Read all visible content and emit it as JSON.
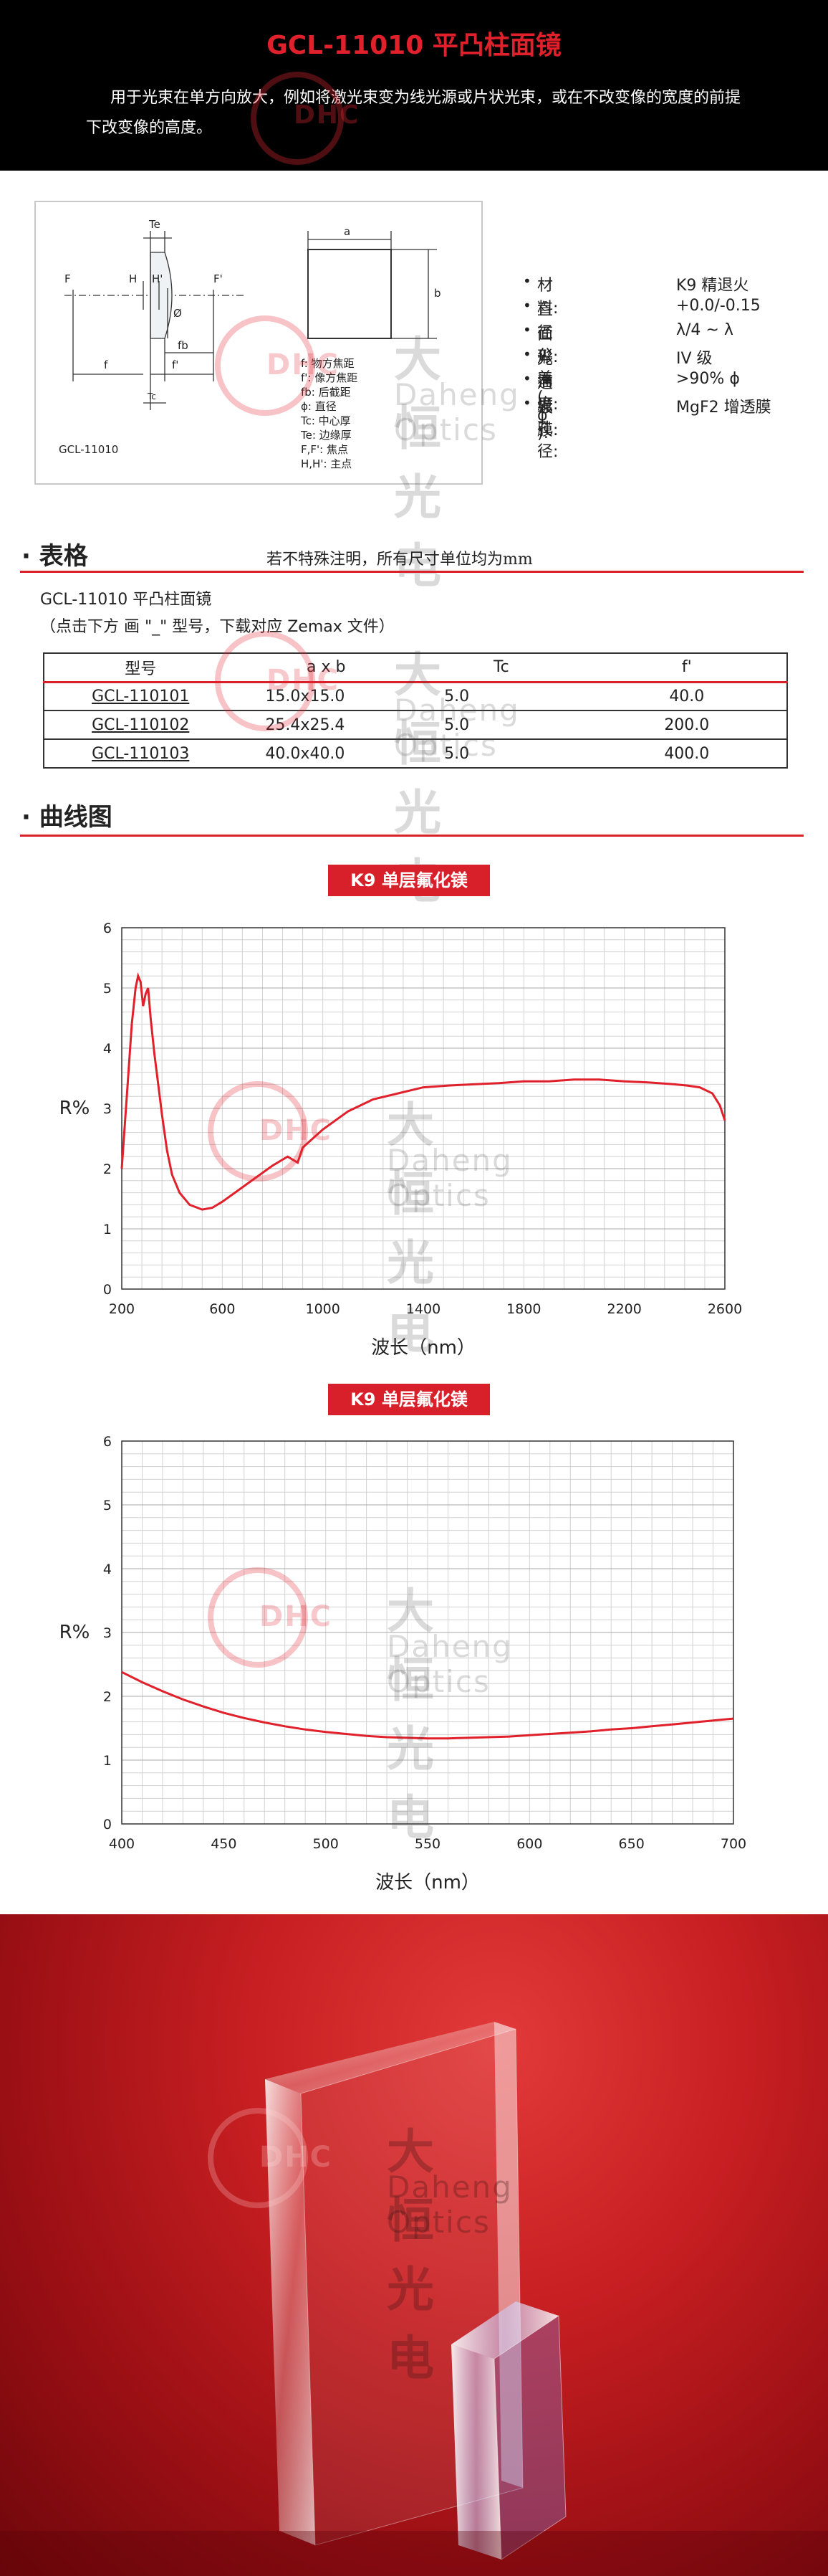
{
  "header": {
    "title": "GCL-11010 平凸柱面镜",
    "intro": "用于光束在单方向放大，例如将激光束变为线光源或片状光束，或在不改变像的宽度的前提下改变像的高度。"
  },
  "watermark": {
    "logo": "DHC",
    "cn": "大恒光电",
    "en": "Daheng Optics"
  },
  "diagram": {
    "labels": {
      "Te": "Te",
      "F": "F",
      "H": "H",
      "H2": "H'",
      "Fp": "F'",
      "phi": "Ø",
      "fb": "fb",
      "f": "f",
      "fp": "f'",
      "Tc": "Tc",
      "a": "a",
      "b": "b"
    },
    "model_label": "GCL-11010",
    "legend": [
      "f: 物方焦距",
      "f': 像方焦距",
      "fb: 后截距",
      "ϕ: 直径",
      "Tc: 中心厚",
      "Te: 边缘厚",
      "F,F': 焦点",
      "H,H': 主点"
    ]
  },
  "specs": [
    {
      "k": "材料:",
      "v": "K9 精退火"
    },
    {
      "k": "直径公差 ( ϕ ):",
      "v": "+0.0/-0.15"
    },
    {
      "k": "面形:",
      "v": "λ/4 ~ λ"
    },
    {
      "k": "光洁度:",
      "v": "IV 级"
    },
    {
      "k": "通光孔径:",
      "v": ">90% ϕ"
    },
    {
      "k": "镀膜:",
      "v": "MgF2 增透膜"
    }
  ],
  "table_section": {
    "title": "表格",
    "note": "若不特殊注明，所有尺寸单位均为mm",
    "caption1": "GCL-11010 平凸柱面镜",
    "caption2": "（点击下方 画 \"_\" 型号，下载对应 Zemax 文件）",
    "headers": [
      "型号",
      "a x b",
      "Tc",
      "f'"
    ],
    "rows": [
      [
        "GCL-110101",
        "15.0x15.0",
        "5.0",
        "40.0"
      ],
      [
        "GCL-110102",
        "25.4x25.4",
        "5.0",
        "200.0"
      ],
      [
        "GCL-110103",
        "40.0x40.0",
        "5.0",
        "400.0"
      ]
    ]
  },
  "curve_section": {
    "title": "曲线图"
  },
  "chart_data": [
    {
      "type": "line",
      "title": "K9 单层氟化镁",
      "xlabel": "波长（nm）",
      "ylabel": "R%",
      "xlim": [
        200,
        2600
      ],
      "ylim": [
        0,
        6
      ],
      "xticks": [
        200,
        600,
        1000,
        1400,
        1800,
        2200,
        2600
      ],
      "yticks": [
        0,
        1,
        2,
        3,
        4,
        5,
        6
      ],
      "grid": true,
      "series": [
        {
          "color": "#e0202a",
          "x": [
            200,
            210,
            225,
            240,
            255,
            265,
            275,
            285,
            295,
            305,
            315,
            330,
            345,
            360,
            380,
            400,
            430,
            470,
            520,
            560,
            600,
            650,
            700,
            750,
            800,
            860,
            900,
            920,
            1000,
            1100,
            1200,
            1300,
            1400,
            1500,
            1600,
            1700,
            1800,
            1900,
            2000,
            2100,
            2200,
            2300,
            2400,
            2450,
            2500,
            2550,
            2580,
            2600
          ],
          "y": [
            2.0,
            2.6,
            3.5,
            4.4,
            5.0,
            5.2,
            5.1,
            4.7,
            4.9,
            5.0,
            4.5,
            3.9,
            3.4,
            2.9,
            2.3,
            1.9,
            1.6,
            1.4,
            1.32,
            1.35,
            1.45,
            1.6,
            1.75,
            1.9,
            2.05,
            2.2,
            2.1,
            2.35,
            2.65,
            2.95,
            3.15,
            3.25,
            3.35,
            3.38,
            3.4,
            3.42,
            3.45,
            3.45,
            3.48,
            3.48,
            3.45,
            3.43,
            3.4,
            3.38,
            3.35,
            3.25,
            3.05,
            2.8
          ]
        }
      ]
    },
    {
      "type": "line",
      "title": "K9 单层氟化镁",
      "xlabel": "波长（nm）",
      "ylabel": "R%",
      "xlim": [
        400,
        700
      ],
      "ylim": [
        0,
        6
      ],
      "xticks": [
        400,
        450,
        500,
        550,
        600,
        650,
        700
      ],
      "yticks": [
        0,
        1,
        2,
        3,
        4,
        5,
        6
      ],
      "grid": true,
      "series": [
        {
          "color": "#e0202a",
          "x": [
            400,
            410,
            420,
            430,
            440,
            450,
            460,
            470,
            480,
            490,
            500,
            510,
            520,
            530,
            540,
            550,
            560,
            570,
            580,
            590,
            600,
            610,
            620,
            630,
            640,
            650,
            660,
            670,
            680,
            690,
            700
          ],
          "y": [
            2.38,
            2.22,
            2.08,
            1.95,
            1.84,
            1.74,
            1.66,
            1.59,
            1.53,
            1.48,
            1.44,
            1.41,
            1.38,
            1.36,
            1.35,
            1.34,
            1.34,
            1.35,
            1.36,
            1.37,
            1.39,
            1.41,
            1.43,
            1.45,
            1.48,
            1.5,
            1.53,
            1.56,
            1.59,
            1.62,
            1.65
          ]
        }
      ]
    }
  ]
}
